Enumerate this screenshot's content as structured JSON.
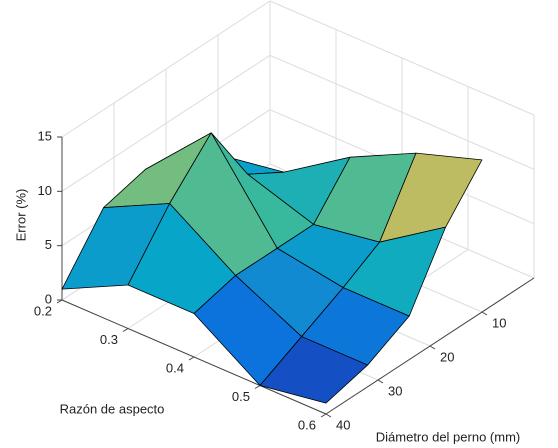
{
  "chart_data": {
    "type": "surface",
    "x_label": "Razón de aspecto",
    "y_label": "Diámetro del perno (mm)",
    "z_label": "Error (%)",
    "x": [
      0.2,
      0.3,
      0.4,
      0.5,
      0.6
    ],
    "y": [
      10,
      17,
      24,
      32,
      40
    ],
    "z": [
      [
        4,
        5,
        9,
        12,
        14
      ],
      [
        5,
        7,
        5,
        6,
        10
      ],
      [
        7,
        13,
        5,
        4,
        4
      ],
      [
        6,
        9,
        5,
        2,
        2
      ],
      [
        1,
        4,
        4,
        0,
        1
      ]
    ],
    "xlim": [
      0.2,
      0.6
    ],
    "xticks": [
      0.2,
      0.3,
      0.4,
      0.5,
      0.6
    ],
    "ylim": [
      0,
      40
    ],
    "yticks": [
      10,
      20,
      30,
      40
    ],
    "zlim": [
      0,
      15
    ],
    "zticks": [
      0,
      5,
      10,
      15
    ],
    "colormap": [
      "#352a87",
      "#0363e1",
      "#1485d4",
      "#06a7c6",
      "#38b99e",
      "#92bf73",
      "#d9ba56",
      "#fcce2e",
      "#f9fb0e"
    ],
    "grid": true
  }
}
